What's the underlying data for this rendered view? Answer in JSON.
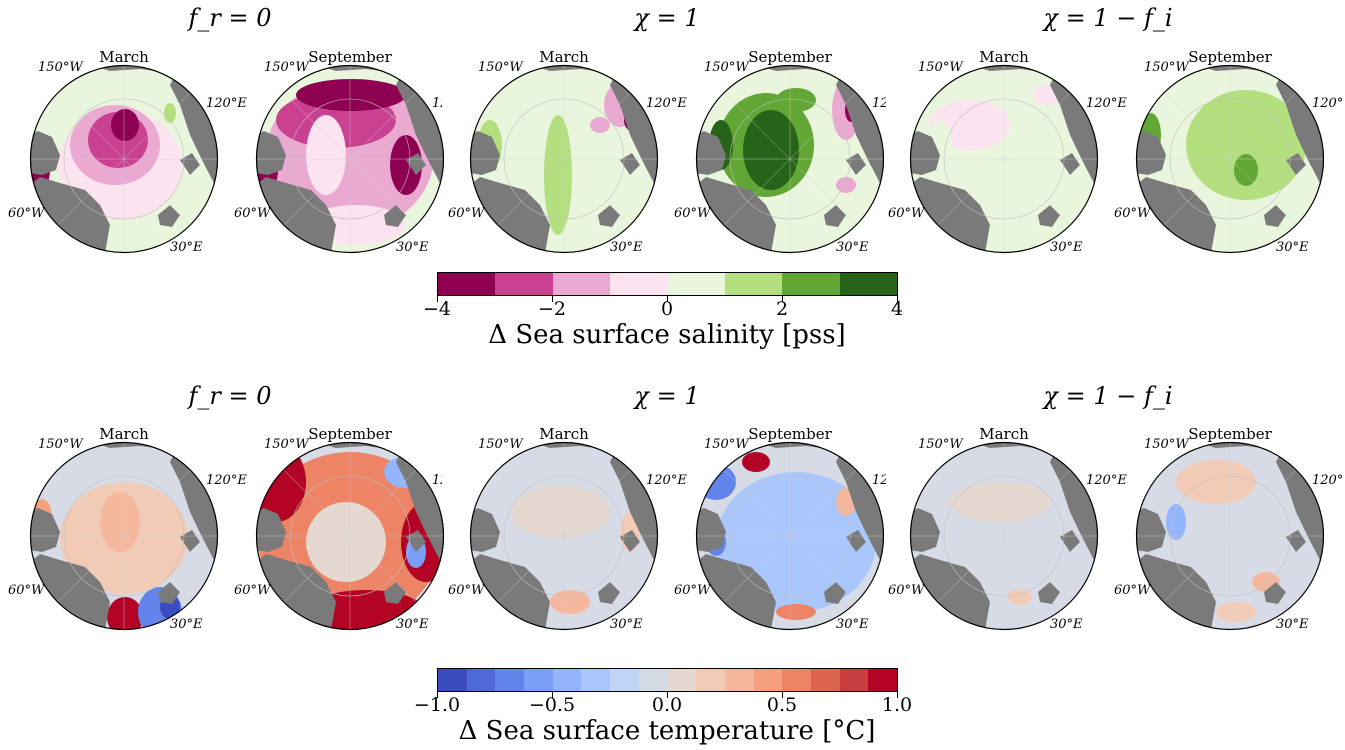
{
  "salinity_panel": {
    "group_titles": [
      "f_r = 0",
      "χ = 1",
      "χ = 1 − f_i"
    ],
    "month_labels": [
      "March",
      "September",
      "March",
      "September",
      "March",
      "September"
    ],
    "lon_labels": {
      "lon150w": "150°W",
      "lon120e": "120°E",
      "lon60w": "60°W",
      "lon30e": "30°E"
    },
    "colorbar": {
      "title": "Δ Sea surface salinity [pss]",
      "ticks": [
        "−4",
        "−2",
        "0",
        "2",
        "4"
      ],
      "colors": [
        "#8e0152",
        "#c94190",
        "#eaa9d1",
        "#fbe3ef",
        "#eaf5dd",
        "#b3df7f",
        "#62a735",
        "#276419"
      ]
    }
  },
  "temperature_panel": {
    "group_titles": [
      "f_r = 0",
      "χ = 1",
      "χ = 1 − f_i"
    ],
    "month_labels": [
      "March",
      "September",
      "March",
      "September",
      "March",
      "September"
    ],
    "lon_labels": {
      "lon150w": "150°W",
      "lon120e": "120°E",
      "lon60w": "60°W",
      "lon30e": "30°E"
    },
    "colorbar": {
      "title": "Δ Sea surface temperature [°C]",
      "ticks": [
        "−1.0",
        "−0.5",
        "0.0",
        "0.5",
        "1.0"
      ],
      "colors": [
        "#3b4cc0",
        "#4e69d8",
        "#6384eb",
        "#7b9ff9",
        "#93b5fe",
        "#aac7fd",
        "#c0d4f5",
        "#d5dbe5",
        "#e5d8d1",
        "#f2cbb7",
        "#f6b89c",
        "#f4a07f",
        "#ec8465",
        "#dd6550",
        "#c83d3d",
        "#b40426"
      ]
    }
  },
  "map_colors": {
    "land": "#7a7a7a",
    "sss_neutral": "#eaf5dd",
    "sst_neutral": "#d6dbe6"
  }
}
